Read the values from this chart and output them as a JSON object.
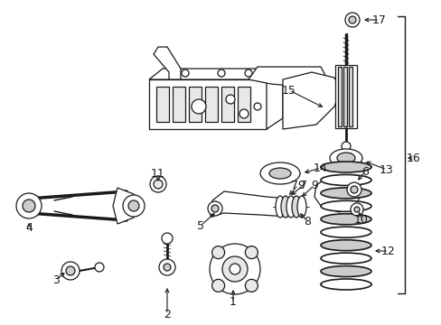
{
  "bg_color": "#ffffff",
  "line_color": "#1a1a1a",
  "fig_width": 4.89,
  "fig_height": 3.6,
  "dpi": 100,
  "font_size": 9.0,
  "lw": 0.9
}
